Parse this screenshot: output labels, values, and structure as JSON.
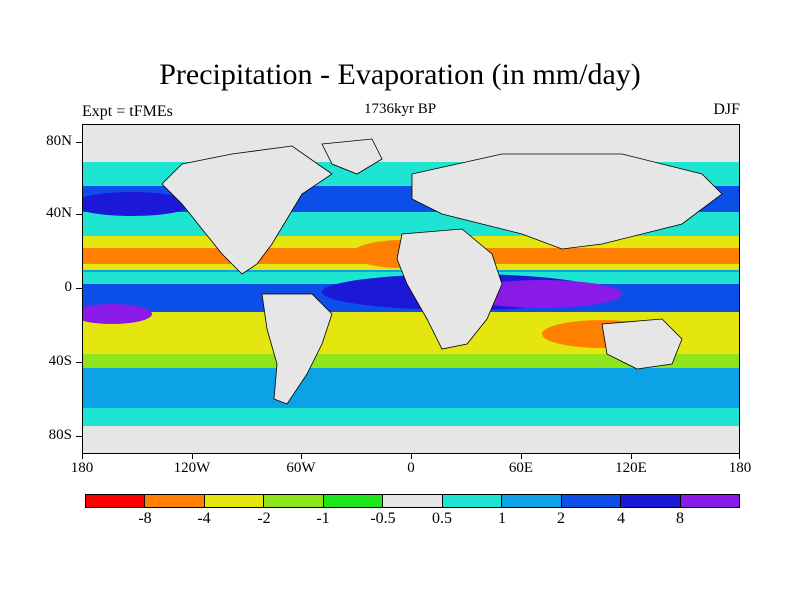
{
  "figure": {
    "title": "Precipitation - Evaporation (in mm/day)",
    "subtitle": "1736kyr BP",
    "left_label": "Expt = tFMEs",
    "right_label": "DJF"
  },
  "axes": {
    "lat_labels": [
      "80N",
      "40N",
      "0",
      "40S",
      "80S"
    ],
    "lon_labels": [
      "180",
      "120W",
      "60W",
      "0",
      "60E",
      "120E",
      "180"
    ]
  },
  "colorbar": {
    "colors": [
      "#ff0000",
      "#ff8000",
      "#e5e50f",
      "#8ee51c",
      "#1ee51c",
      "#e6e6e6",
      "#1ee5d1",
      "#0ba3e5",
      "#0c4fe8",
      "#1c18d8",
      "#8a1ae5"
    ],
    "labels": [
      "-8",
      "-4",
      "-2",
      "-1",
      "-0.5",
      "0.5",
      "1",
      "2",
      "4",
      "8"
    ]
  },
  "legend_colors": {
    "land": "#e6e6e6",
    "coastline": "#000000"
  }
}
